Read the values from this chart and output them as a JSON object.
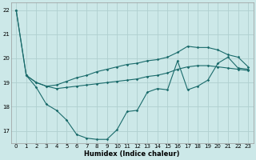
{
  "xlabel": "Humidex (Indice chaleur)",
  "xlim": [
    -0.5,
    23.5
  ],
  "ylim": [
    16.5,
    22.3
  ],
  "bg_color": "#cce8e8",
  "grid_color": "#b0d0d0",
  "line_color": "#1a6b6b",
  "line1_x": [
    0,
    1,
    2,
    3,
    4,
    5,
    6,
    7,
    8,
    9,
    10,
    11,
    12,
    13,
    14,
    15,
    16,
    17,
    18,
    19,
    20,
    21,
    22,
    23
  ],
  "line1_y": [
    22.0,
    19.3,
    18.8,
    18.1,
    17.85,
    17.45,
    16.85,
    16.7,
    16.65,
    16.65,
    17.05,
    17.8,
    17.85,
    18.6,
    18.75,
    18.7,
    19.9,
    18.7,
    18.85,
    19.1,
    19.8,
    20.05,
    19.6,
    19.55
  ],
  "line2_x": [
    0,
    1,
    2,
    3,
    4,
    5,
    6,
    7,
    8,
    9,
    10,
    11,
    12,
    13,
    14,
    15,
    16,
    17,
    18,
    19,
    20,
    21,
    22,
    23
  ],
  "line2_y": [
    22.0,
    19.3,
    19.0,
    18.85,
    18.9,
    19.05,
    19.2,
    19.3,
    19.45,
    19.55,
    19.65,
    19.75,
    19.8,
    19.9,
    19.95,
    20.05,
    20.25,
    20.5,
    20.45,
    20.45,
    20.35,
    20.15,
    20.05,
    19.65
  ],
  "line3_x": [
    1,
    2,
    3,
    4,
    5,
    6,
    7,
    8,
    9,
    10,
    11,
    12,
    13,
    14,
    15,
    16,
    17,
    18,
    19,
    20,
    21,
    22,
    23
  ],
  "line3_y": [
    19.3,
    19.0,
    18.85,
    18.75,
    18.8,
    18.85,
    18.9,
    18.95,
    19.0,
    19.05,
    19.1,
    19.15,
    19.25,
    19.3,
    19.4,
    19.55,
    19.65,
    19.7,
    19.7,
    19.65,
    19.6,
    19.55,
    19.5
  ],
  "yticks": [
    17,
    18,
    19,
    20,
    21,
    22
  ],
  "xticks": [
    0,
    1,
    2,
    3,
    4,
    5,
    6,
    7,
    8,
    9,
    10,
    11,
    12,
    13,
    14,
    15,
    16,
    17,
    18,
    19,
    20,
    21,
    22,
    23
  ]
}
